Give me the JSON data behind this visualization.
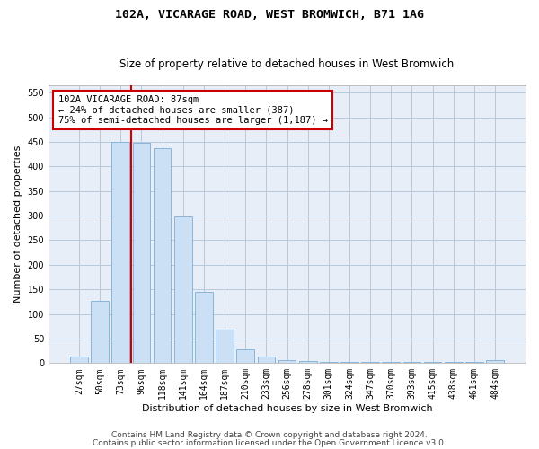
{
  "title": "102A, VICARAGE ROAD, WEST BROMWICH, B71 1AG",
  "subtitle": "Size of property relative to detached houses in West Bromwich",
  "xlabel": "Distribution of detached houses by size in West Bromwich",
  "ylabel": "Number of detached properties",
  "categories": [
    "27sqm",
    "50sqm",
    "73sqm",
    "96sqm",
    "118sqm",
    "141sqm",
    "164sqm",
    "187sqm",
    "210sqm",
    "233sqm",
    "256sqm",
    "278sqm",
    "301sqm",
    "324sqm",
    "347sqm",
    "370sqm",
    "393sqm",
    "415sqm",
    "438sqm",
    "461sqm",
    "484sqm"
  ],
  "values": [
    14,
    126,
    449,
    448,
    437,
    298,
    145,
    68,
    28,
    14,
    7,
    5,
    3,
    2,
    2,
    2,
    2,
    2,
    2,
    2,
    7
  ],
  "bar_color": "#cce0f5",
  "bar_edge_color": "#7bafd4",
  "vline_color": "#cc0000",
  "vline_x_index": 2.5,
  "annotation_text": "102A VICARAGE ROAD: 87sqm\n← 24% of detached houses are smaller (387)\n75% of semi-detached houses are larger (1,187) →",
  "annotation_box_color": "#ffffff",
  "annotation_box_edge_color": "#cc0000",
  "ylim": [
    0,
    565
  ],
  "yticks": [
    0,
    50,
    100,
    150,
    200,
    250,
    300,
    350,
    400,
    450,
    500,
    550
  ],
  "footer1": "Contains HM Land Registry data © Crown copyright and database right 2024.",
  "footer2": "Contains public sector information licensed under the Open Government Licence v3.0.",
  "background_color": "#ffffff",
  "plot_bg_color": "#e8eef7",
  "grid_color": "#b8c8dc",
  "title_fontsize": 9.5,
  "subtitle_fontsize": 8.5,
  "axis_label_fontsize": 8,
  "tick_fontsize": 7,
  "annotation_fontsize": 7.5,
  "footer_fontsize": 6.5
}
